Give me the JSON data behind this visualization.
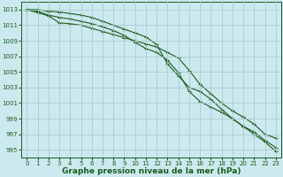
{
  "x": [
    0,
    1,
    2,
    3,
    4,
    5,
    6,
    7,
    8,
    9,
    10,
    11,
    12,
    13,
    14,
    15,
    16,
    17,
    18,
    19,
    20,
    21,
    22,
    23
  ],
  "line1": [
    1013.0,
    1012.6,
    1012.2,
    1011.3,
    1011.2,
    1011.0,
    1010.6,
    1010.2,
    1009.8,
    1009.4,
    1009.0,
    1008.6,
    1008.2,
    1007.5,
    1006.8,
    1005.2,
    1003.4,
    1002.2,
    1001.0,
    1000.0,
    999.2,
    998.3,
    997.0,
    996.5
  ],
  "line2": [
    1013.0,
    1012.8,
    1012.3,
    1012.0,
    1011.8,
    1011.5,
    1011.2,
    1010.8,
    1010.3,
    1009.7,
    1008.8,
    1008.0,
    1007.5,
    1006.5,
    1004.9,
    1002.5,
    1001.2,
    1000.5,
    999.8,
    999.0,
    998.0,
    997.3,
    996.2,
    995.3
  ],
  "line3": [
    1013.0,
    1013.0,
    1012.8,
    1012.7,
    1012.5,
    1012.3,
    1012.0,
    1011.5,
    1011.0,
    1010.5,
    1010.0,
    1009.5,
    1008.5,
    1006.0,
    1004.5,
    1003.0,
    1002.5,
    1001.5,
    1000.2,
    999.0,
    998.0,
    997.0,
    996.0,
    994.8
  ],
  "bg_color": "#cce9f0",
  "grid_color": "#aacccc",
  "line_color": "#1a5c1a",
  "xlabel": "Graphe pression niveau de la mer (hPa)",
  "ylim": [
    994,
    1014
  ],
  "xlim": [
    -0.5,
    23.5
  ],
  "yticks": [
    995,
    997,
    999,
    1001,
    1003,
    1005,
    1007,
    1009,
    1011,
    1013
  ],
  "xticks": [
    0,
    1,
    2,
    3,
    4,
    5,
    6,
    7,
    8,
    9,
    10,
    11,
    12,
    13,
    14,
    15,
    16,
    17,
    18,
    19,
    20,
    21,
    22,
    23
  ],
  "tick_fontsize": 5,
  "xlabel_fontsize": 6.5
}
